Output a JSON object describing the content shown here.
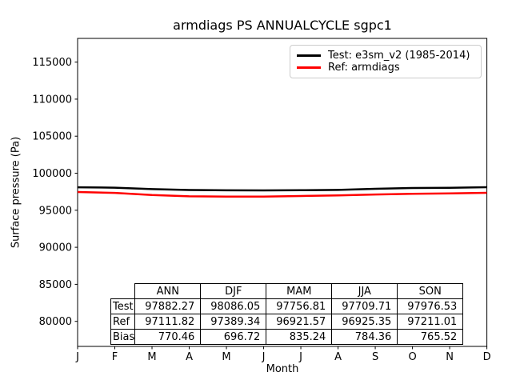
{
  "chart_data": {
    "type": "line",
    "title": "armdiags PS ANNUALCYCLE sgpc1",
    "xlabel": "Month",
    "ylabel": "Surface pressure (Pa)",
    "categories": [
      "J",
      "F",
      "M",
      "A",
      "M",
      "J",
      "J",
      "A",
      "S",
      "O",
      "N",
      "D"
    ],
    "y_ticks": [
      80000,
      85000,
      90000,
      95000,
      100000,
      105000,
      110000,
      115000
    ],
    "ylim": [
      76620,
      118200
    ],
    "grid": false,
    "legend_position": "upper right",
    "series": [
      {
        "name": "Test: e3sm_v2 (1985-2014)",
        "color": "#000000",
        "values": [
          98100,
          98050,
          97850,
          97730,
          97690,
          97680,
          97700,
          97750,
          97900,
          98000,
          98030,
          98110
        ]
      },
      {
        "name": "Ref: armdiags",
        "color": "#ff0000",
        "values": [
          97460,
          97350,
          97050,
          96880,
          96835,
          96850,
          96920,
          97005,
          97125,
          97230,
          97280,
          97360
        ]
      }
    ]
  },
  "stats_table": {
    "columns": [
      "ANN",
      "DJF",
      "MAM",
      "JJA",
      "SON"
    ],
    "rows": [
      {
        "label": "Test",
        "values": [
          "97882.27",
          "98086.05",
          "97756.81",
          "97709.71",
          "97976.53"
        ]
      },
      {
        "label": "Ref",
        "values": [
          "97111.82",
          "97389.34",
          "96921.57",
          "96925.35",
          "97211.01"
        ]
      },
      {
        "label": "Bias",
        "values": [
          "770.46",
          "696.72",
          "835.24",
          "784.36",
          "765.52"
        ]
      }
    ]
  },
  "legend": {
    "border_color": "#cccccc"
  }
}
